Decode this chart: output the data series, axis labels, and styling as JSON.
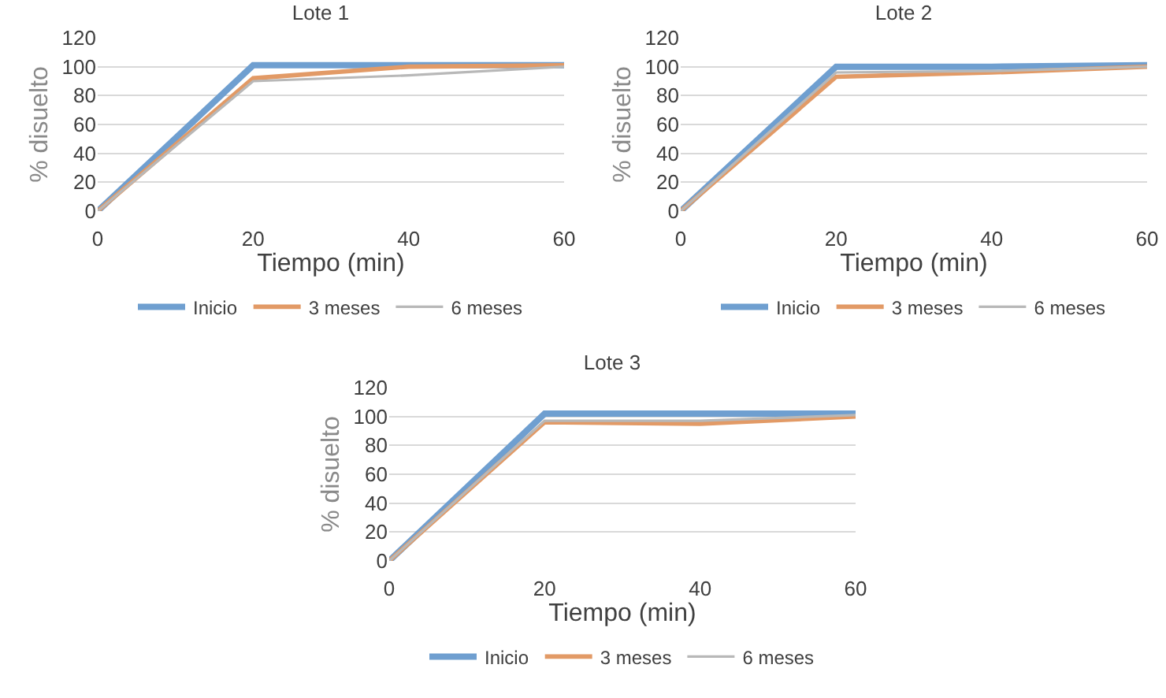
{
  "chart_data": [
    {
      "type": "line",
      "title": "Lote 1",
      "xlabel": "Tiempo (min)",
      "ylabel": "% disuelto",
      "x": [
        0,
        20,
        40,
        60
      ],
      "xlim": [
        0,
        60
      ],
      "xticks": [
        0,
        20,
        40,
        60
      ],
      "ylim": [
        0,
        120
      ],
      "yticks": [
        0,
        20,
        40,
        60,
        80,
        100,
        120
      ],
      "grid": "y",
      "legend": "bottom",
      "marker": "none",
      "line_style": "solid",
      "series": [
        {
          "name": "Inicio",
          "color": "#6f9fd0",
          "values": [
            0,
            101,
            101,
            101
          ]
        },
        {
          "name": "3 meses",
          "color": "#e29a66",
          "values": [
            0,
            92,
            100,
            101
          ]
        },
        {
          "name": "6 meses",
          "color": "#b8b8b8",
          "values": [
            0,
            90,
            94,
            100
          ]
        }
      ]
    },
    {
      "type": "line",
      "title": "Lote 2",
      "xlabel": "Tiempo (min)",
      "ylabel": "% disuelto",
      "x": [
        0,
        20,
        40,
        60
      ],
      "xlim": [
        0,
        60
      ],
      "xticks": [
        0,
        20,
        40,
        60
      ],
      "ylim": [
        0,
        120
      ],
      "yticks": [
        0,
        20,
        40,
        60,
        80,
        100,
        120
      ],
      "grid": "y",
      "legend": "bottom",
      "marker": "none",
      "line_style": "solid",
      "series": [
        {
          "name": "Inicio",
          "color": "#6f9fd0",
          "values": [
            0,
            100,
            100,
            101
          ]
        },
        {
          "name": "3 meses",
          "color": "#e29a66",
          "values": [
            0,
            93,
            96,
            100
          ]
        },
        {
          "name": "6 meses",
          "color": "#b8b8b8",
          "values": [
            0,
            96,
            97,
            100
          ]
        }
      ]
    },
    {
      "type": "line",
      "title": "Lote 3",
      "xlabel": "Tiempo (min)",
      "ylabel": "% disuelto",
      "x": [
        0,
        20,
        40,
        60
      ],
      "xlim": [
        0,
        60
      ],
      "xticks": [
        0,
        20,
        40,
        60
      ],
      "ylim": [
        0,
        120
      ],
      "yticks": [
        0,
        20,
        40,
        60,
        80,
        100,
        120
      ],
      "grid": "y",
      "legend": "bottom",
      "marker": "none",
      "line_style": "solid",
      "series": [
        {
          "name": "Inicio",
          "color": "#6f9fd0",
          "values": [
            0,
            102,
            102,
            102
          ]
        },
        {
          "name": "3 meses",
          "color": "#e29a66",
          "values": [
            0,
            96,
            95,
            100
          ]
        },
        {
          "name": "6 meses",
          "color": "#b8b8b8",
          "values": [
            0,
            97,
            97,
            101
          ]
        }
      ]
    }
  ]
}
